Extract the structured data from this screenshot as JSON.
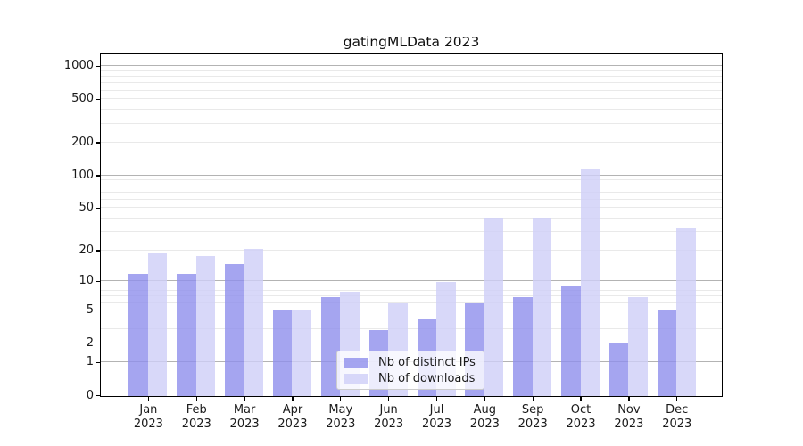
{
  "title": "gatingMLData 2023",
  "colors": {
    "distinct_ips": "rgba(143,143,236,0.8)",
    "downloads": "rgba(206,206,248,0.8)",
    "grid_major": "#b3b3b3",
    "grid_minor": "#e9e9e9",
    "spine": "#000000",
    "text": "#1a1a1a",
    "legend_border": "#cccccc",
    "legend_background": "rgba(255,255,255,0.8)"
  },
  "chart_data": {
    "type": "bar",
    "title": "gatingMLData 2023",
    "categories": [
      "Jan 2023",
      "Feb 2023",
      "Mar 2023",
      "Apr 2023",
      "May 2023",
      "Jun 2023",
      "Jul 2023",
      "Aug 2023",
      "Sep 2023",
      "Oct 2023",
      "Nov 2023",
      "Dec 2023"
    ],
    "series": [
      {
        "name": "Nb of distinct IPs",
        "color": "rgba(143,143,236,0.8)",
        "values": [
          12,
          12,
          15,
          5,
          7,
          3,
          4,
          6,
          7,
          9,
          2,
          5
        ]
      },
      {
        "name": "Nb of downloads",
        "color": "rgba(206,206,248,0.8)",
        "values": [
          19,
          18,
          21,
          5,
          8,
          6,
          10,
          41,
          41,
          116,
          7,
          33
        ]
      }
    ],
    "xlabel": "",
    "ylabel": "",
    "yscale": "log10(1+x)",
    "yticks": [
      0,
      1,
      2,
      5,
      10,
      20,
      50,
      100,
      200,
      500,
      1000
    ],
    "ylim": [
      0,
      1295
    ],
    "grid": "horizontal major+minor",
    "legend_position": "lower center inside plot"
  }
}
